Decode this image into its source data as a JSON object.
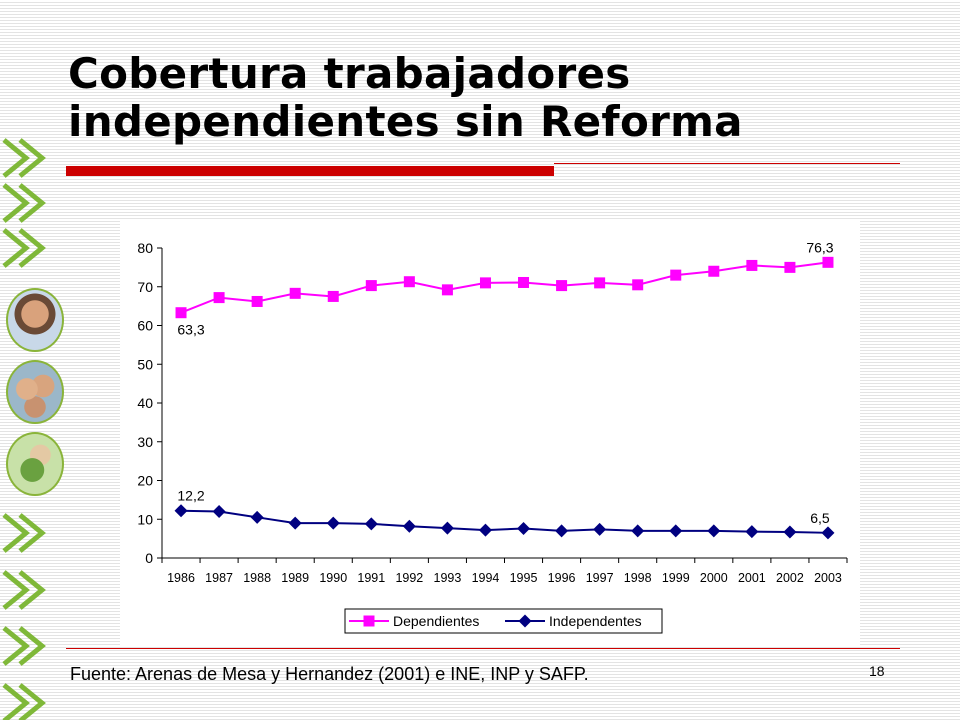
{
  "slide": {
    "title": "Cobertura trabajadores\nindependientes sin Reforma",
    "source": "Fuente: Arenas de Mesa y Hernandez (2001) e INE, INP y SAFP.",
    "page_number": "18"
  },
  "colors": {
    "accent_red": "#cc0000",
    "chevron_green": "#7fb839",
    "dependientes": "#ff00ff",
    "independientes": "#000080"
  },
  "chart_data": {
    "type": "line",
    "title": "",
    "xlabel": "",
    "ylabel": "",
    "categories": [
      "1986",
      "1987",
      "1988",
      "1989",
      "1990",
      "1991",
      "1992",
      "1993",
      "1994",
      "1995",
      "1996",
      "1997",
      "1998",
      "1999",
      "2000",
      "2001",
      "2002",
      "2003"
    ],
    "ylim": [
      0,
      80
    ],
    "yticks": [
      0,
      10,
      20,
      30,
      40,
      50,
      60,
      70,
      80
    ],
    "grid": false,
    "legend_position": "bottom",
    "series": [
      {
        "name": "Dependientes",
        "marker": "square",
        "color": "#ff00ff",
        "values": [
          63.3,
          67.2,
          66.2,
          68.3,
          67.5,
          70.3,
          71.3,
          69.2,
          71.0,
          71.1,
          70.3,
          71.0,
          70.5,
          73.0,
          74.0,
          75.5,
          75.0,
          76.3
        ]
      },
      {
        "name": "Independentes",
        "marker": "diamond",
        "color": "#000080",
        "values": [
          12.2,
          12.0,
          10.5,
          9.0,
          9.0,
          8.8,
          8.2,
          7.7,
          7.2,
          7.6,
          7.0,
          7.4,
          7.0,
          7.0,
          7.0,
          6.8,
          6.7,
          6.5
        ]
      }
    ],
    "annotations": [
      {
        "text": "63,3",
        "series": 0,
        "index": 0,
        "placement": "below"
      },
      {
        "text": "76,3",
        "series": 0,
        "index": 17,
        "placement": "above-left"
      },
      {
        "text": "12,2",
        "series": 1,
        "index": 0,
        "placement": "above"
      },
      {
        "text": "6,5",
        "series": 1,
        "index": 17,
        "placement": "above-left"
      }
    ]
  },
  "decor": {
    "side_icons": [
      "chevron-icon",
      "chevron-icon",
      "chevron-icon",
      "person-photo",
      "family-photo",
      "food-photo",
      "chevron-icon",
      "chevron-icon",
      "chevron-icon",
      "chevron-icon"
    ]
  }
}
